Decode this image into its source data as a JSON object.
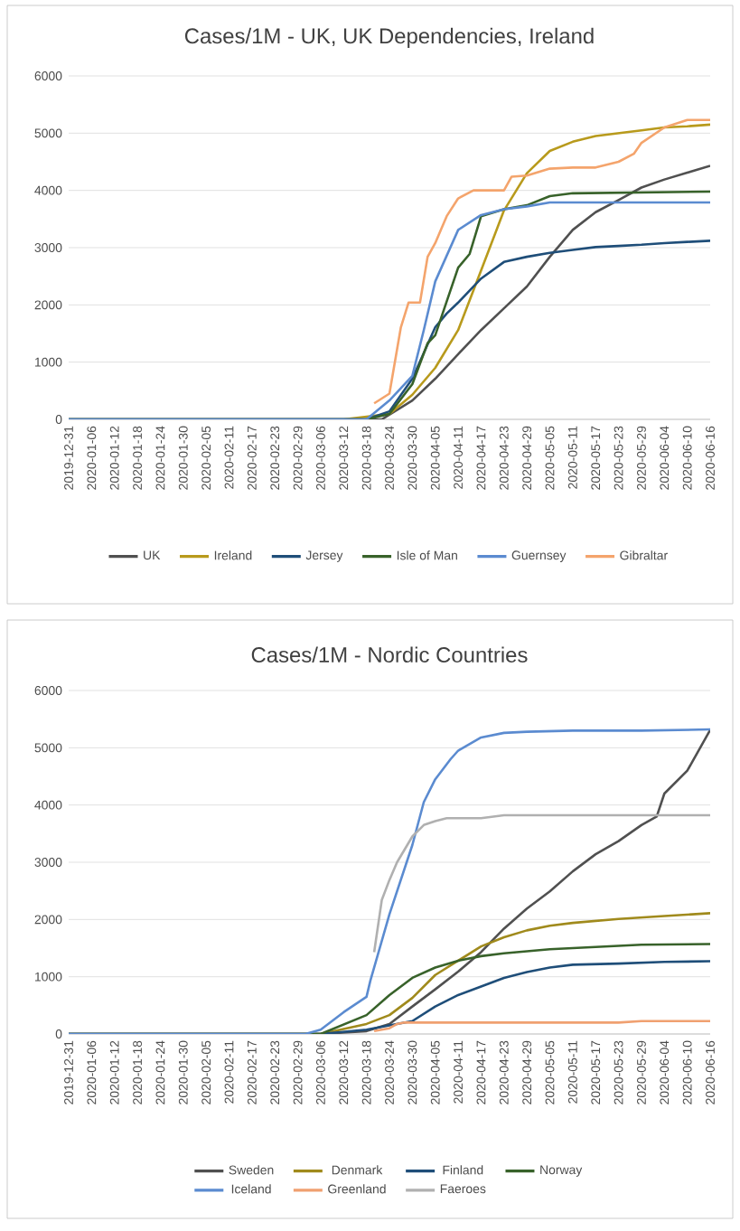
{
  "chart_data": [
    {
      "type": "line",
      "title": "Cases/1M - UK, UK Dependencies, Ireland",
      "xlim": [
        "2019-12-31",
        "2020-06-16"
      ],
      "xticks": [
        "2019-12-31",
        "2020-01-06",
        "2020-01-12",
        "2020-01-18",
        "2020-01-24",
        "2020-01-30",
        "2020-02-05",
        "2020-02-11",
        "2020-02-17",
        "2020-02-23",
        "2020-02-29",
        "2020-03-06",
        "2020-03-12",
        "2020-03-18",
        "2020-03-24",
        "2020-03-30",
        "2020-04-05",
        "2020-04-11",
        "2020-04-17",
        "2020-04-23",
        "2020-04-29",
        "2020-05-05",
        "2020-05-11",
        "2020-05-17",
        "2020-05-23",
        "2020-05-29",
        "2020-06-04",
        "2020-06-10",
        "2020-06-16"
      ],
      "ylim": [
        0,
        6000
      ],
      "yticks": [
        0,
        1000,
        2000,
        3000,
        4000,
        5000,
        6000
      ],
      "grid": "y",
      "legend": "bottom",
      "marker": "none",
      "line_style": "solid",
      "series": [
        {
          "name": "UK",
          "color": "#505050",
          "x": [
            "2019-12-31",
            "2020-03-22",
            "2020-03-30",
            "2020-04-05",
            "2020-04-11",
            "2020-04-17",
            "2020-04-23",
            "2020-04-29",
            "2020-05-05",
            "2020-05-11",
            "2020-05-17",
            "2020-05-23",
            "2020-05-29",
            "2020-06-04",
            "2020-06-10",
            "2020-06-16"
          ],
          "values": [
            0,
            0,
            330,
            710,
            1140,
            1560,
            1940,
            2320,
            2840,
            3310,
            3620,
            3830,
            4050,
            4190,
            4310,
            4430
          ]
        },
        {
          "name": "Ireland",
          "color": "#b89a1c",
          "x": [
            "2019-12-31",
            "2020-03-12",
            "2020-03-24",
            "2020-03-30",
            "2020-04-05",
            "2020-04-11",
            "2020-04-17",
            "2020-04-23",
            "2020-04-29",
            "2020-05-05",
            "2020-05-11",
            "2020-05-17",
            "2020-05-23",
            "2020-05-29",
            "2020-06-04",
            "2020-06-10",
            "2020-06-16"
          ],
          "values": [
            0,
            0,
            95,
            430,
            900,
            1560,
            2600,
            3650,
            4300,
            4690,
            4850,
            4950,
            5000,
            5050,
            5100,
            5120,
            5150
          ]
        },
        {
          "name": "Jersey",
          "color": "#1f4e79",
          "x": [
            "2019-12-31",
            "2020-03-18",
            "2020-03-24",
            "2020-03-30",
            "2020-04-05",
            "2020-04-08",
            "2020-04-11",
            "2020-04-17",
            "2020-04-23",
            "2020-04-29",
            "2020-05-05",
            "2020-05-11",
            "2020-05-17",
            "2020-05-23",
            "2020-05-29",
            "2020-06-04",
            "2020-06-10",
            "2020-06-16"
          ],
          "values": [
            0,
            0,
            140,
            710,
            1610,
            1850,
            2040,
            2460,
            2750,
            2840,
            2910,
            2960,
            3010,
            3030,
            3050,
            3080,
            3100,
            3120
          ]
        },
        {
          "name": "Isle of Man",
          "color": "#38622a",
          "x": [
            "2019-12-31",
            "2020-03-18",
            "2020-03-24",
            "2020-03-30",
            "2020-04-03",
            "2020-04-05",
            "2020-04-11",
            "2020-04-14",
            "2020-04-17",
            "2020-04-23",
            "2020-04-29",
            "2020-05-05",
            "2020-05-11",
            "2020-06-16"
          ],
          "values": [
            0,
            0,
            95,
            615,
            1330,
            1470,
            2650,
            2890,
            3550,
            3670,
            3740,
            3900,
            3950,
            3980
          ]
        },
        {
          "name": "Guernsey",
          "color": "#5b8bd0",
          "x": [
            "2019-12-31",
            "2020-03-18",
            "2020-03-24",
            "2020-03-30",
            "2020-04-02",
            "2020-04-05",
            "2020-04-11",
            "2020-04-17",
            "2020-04-23",
            "2020-04-29",
            "2020-05-05",
            "2020-06-16"
          ],
          "values": [
            0,
            0,
            330,
            760,
            1560,
            2410,
            3310,
            3570,
            3670,
            3720,
            3790,
            3790
          ]
        },
        {
          "name": "Gibraltar",
          "color": "#f4a46c",
          "x": [
            "2020-03-20",
            "2020-03-24",
            "2020-03-27",
            "2020-03-29",
            "2020-04-01",
            "2020-04-03",
            "2020-04-05",
            "2020-04-08",
            "2020-04-11",
            "2020-04-15",
            "2020-04-23",
            "2020-04-25",
            "2020-04-29",
            "2020-05-05",
            "2020-05-11",
            "2020-05-17",
            "2020-05-23",
            "2020-05-27",
            "2020-05-29",
            "2020-06-04",
            "2020-06-10",
            "2020-06-16"
          ],
          "values": [
            280,
            450,
            1610,
            2040,
            2040,
            2840,
            3080,
            3550,
            3860,
            4000,
            4000,
            4240,
            4260,
            4380,
            4400,
            4400,
            4500,
            4640,
            4830,
            5100,
            5230,
            5230
          ]
        }
      ]
    },
    {
      "type": "line",
      "title": "Cases/1M - Nordic Countries",
      "xlim": [
        "2019-12-31",
        "2020-06-16"
      ],
      "xticks": [
        "2019-12-31",
        "2020-01-06",
        "2020-01-12",
        "2020-01-18",
        "2020-01-24",
        "2020-01-30",
        "2020-02-05",
        "2020-02-11",
        "2020-02-17",
        "2020-02-23",
        "2020-02-29",
        "2020-03-06",
        "2020-03-12",
        "2020-03-18",
        "2020-03-24",
        "2020-03-30",
        "2020-04-05",
        "2020-04-11",
        "2020-04-17",
        "2020-04-23",
        "2020-04-29",
        "2020-05-05",
        "2020-05-11",
        "2020-05-17",
        "2020-05-23",
        "2020-05-29",
        "2020-06-04",
        "2020-06-10",
        "2020-06-16"
      ],
      "ylim": [
        0,
        6000
      ],
      "yticks": [
        0,
        1000,
        2000,
        3000,
        4000,
        5000,
        6000
      ],
      "grid": "y",
      "legend": "bottom",
      "marker": "none",
      "line_style": "solid",
      "series": [
        {
          "name": "Sweden",
          "color": "#505050",
          "x": [
            "2019-12-31",
            "2020-03-06",
            "2020-03-18",
            "2020-03-24",
            "2020-03-30",
            "2020-04-05",
            "2020-04-11",
            "2020-04-17",
            "2020-04-23",
            "2020-04-29",
            "2020-05-05",
            "2020-05-11",
            "2020-05-17",
            "2020-05-23",
            "2020-05-29",
            "2020-06-02",
            "2020-06-04",
            "2020-06-10",
            "2020-06-16"
          ],
          "values": [
            0,
            0,
            50,
            175,
            480,
            780,
            1090,
            1430,
            1840,
            2190,
            2490,
            2840,
            3140,
            3370,
            3650,
            3800,
            4200,
            4600,
            5310
          ]
        },
        {
          "name": "Denmark",
          "color": "#a08a1c",
          "x": [
            "2019-12-31",
            "2020-03-06",
            "2020-03-18",
            "2020-03-24",
            "2020-03-30",
            "2020-04-05",
            "2020-04-11",
            "2020-04-17",
            "2020-04-23",
            "2020-04-29",
            "2020-05-05",
            "2020-05-11",
            "2020-05-23",
            "2020-06-04",
            "2020-06-16"
          ],
          "values": [
            0,
            0,
            175,
            330,
            630,
            1030,
            1280,
            1530,
            1690,
            1810,
            1890,
            1940,
            2010,
            2060,
            2110
          ]
        },
        {
          "name": "Finland",
          "color": "#1f4e79",
          "x": [
            "2019-12-31",
            "2020-03-06",
            "2020-03-18",
            "2020-03-24",
            "2020-03-30",
            "2020-04-05",
            "2020-04-11",
            "2020-04-17",
            "2020-04-23",
            "2020-04-29",
            "2020-05-05",
            "2020-05-11",
            "2020-05-23",
            "2020-06-04",
            "2020-06-16"
          ],
          "values": [
            0,
            0,
            75,
            150,
            225,
            480,
            680,
            830,
            980,
            1080,
            1160,
            1210,
            1230,
            1260,
            1270
          ]
        },
        {
          "name": "Norway",
          "color": "#38622a",
          "x": [
            "2019-12-31",
            "2020-03-06",
            "2020-03-18",
            "2020-03-24",
            "2020-03-30",
            "2020-04-05",
            "2020-04-11",
            "2020-04-17",
            "2020-04-23",
            "2020-05-05",
            "2020-05-17",
            "2020-05-29",
            "2020-06-16"
          ],
          "values": [
            0,
            0,
            330,
            680,
            980,
            1160,
            1280,
            1360,
            1410,
            1480,
            1520,
            1560,
            1570
          ]
        },
        {
          "name": "Iceland",
          "color": "#5b8bd0",
          "x": [
            "2019-12-31",
            "2020-03-02",
            "2020-03-06",
            "2020-03-12",
            "2020-03-18",
            "2020-03-19",
            "2020-03-24",
            "2020-03-30",
            "2020-04-02",
            "2020-04-05",
            "2020-04-09",
            "2020-04-11",
            "2020-04-17",
            "2020-04-23",
            "2020-04-29",
            "2020-05-11",
            "2020-05-29",
            "2020-06-16"
          ],
          "values": [
            0,
            0,
            75,
            380,
            650,
            930,
            2090,
            3300,
            4050,
            4450,
            4800,
            4950,
            5180,
            5260,
            5280,
            5300,
            5300,
            5320
          ]
        },
        {
          "name": "Greenland",
          "color": "#f0a070",
          "x": [
            "2020-03-20",
            "2020-03-24",
            "2020-03-26",
            "2020-03-28",
            "2020-05-23",
            "2020-05-29",
            "2020-06-16"
          ],
          "values": [
            50,
            100,
            175,
            200,
            200,
            225,
            225
          ]
        },
        {
          "name": "Faeroes",
          "color": "#b0b0b0",
          "x": [
            "2020-03-20",
            "2020-03-22",
            "2020-03-24",
            "2020-03-26",
            "2020-03-30",
            "2020-04-02",
            "2020-04-05",
            "2020-04-08",
            "2020-04-17",
            "2020-04-23",
            "2020-06-16"
          ],
          "values": [
            1430,
            2340,
            2690,
            3000,
            3450,
            3650,
            3720,
            3770,
            3770,
            3820,
            3820
          ]
        }
      ]
    }
  ]
}
